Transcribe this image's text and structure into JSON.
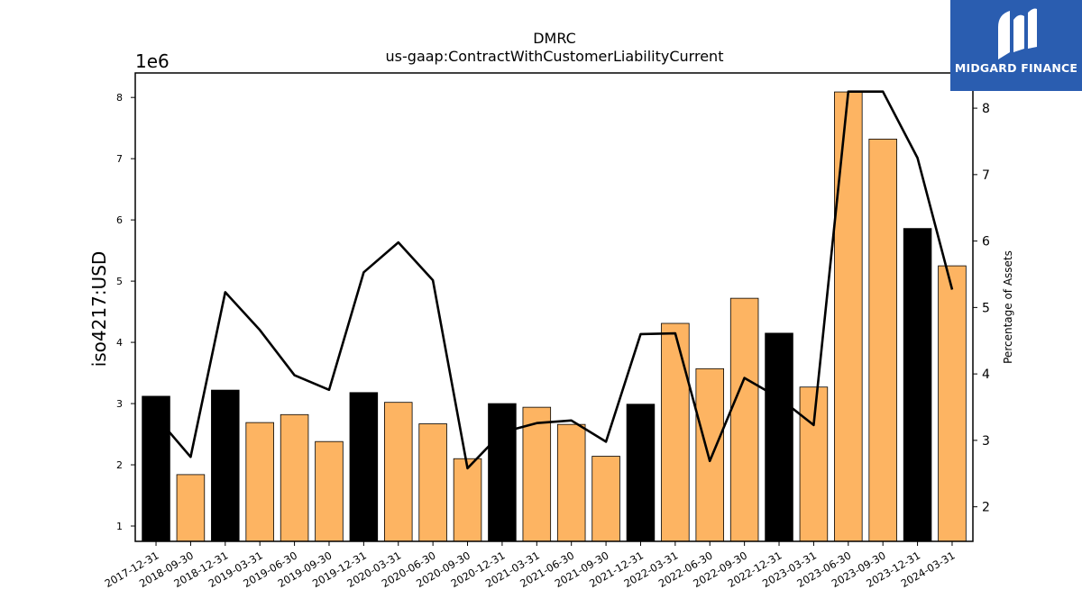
{
  "chart_data": {
    "type": "bar",
    "title": "DMRC",
    "subtitle": "us-gaap:ContractWithCustomerLiabilityCurrent",
    "ylabel": "iso4217:USD",
    "y2label": "Percentage of Assets",
    "y_multiplier": "1e6",
    "ylim": [
      0.75,
      8.4
    ],
    "y2lim": [
      1.48,
      8.53
    ],
    "yticks": [
      "1",
      "2",
      "3",
      "4",
      "5",
      "6",
      "7",
      "8"
    ],
    "y2ticks": [
      "2",
      "3",
      "4",
      "5",
      "6",
      "7",
      "8"
    ],
    "categories": [
      "2017-12-31",
      "2018-09-30",
      "2018-12-31",
      "2019-03-31",
      "2019-06-30",
      "2019-09-30",
      "2019-12-31",
      "2020-03-31",
      "2020-06-30",
      "2020-09-30",
      "2020-12-31",
      "2021-03-31",
      "2021-06-30",
      "2021-09-30",
      "2021-12-31",
      "2022-03-31",
      "2022-06-30",
      "2022-09-30",
      "2022-12-31",
      "2023-03-31",
      "2023-06-30",
      "2023-09-30",
      "2023-12-31",
      "2024-03-31"
    ],
    "series": [
      {
        "type": "bar",
        "values": [
          3.12,
          1.84,
          3.22,
          2.69,
          2.82,
          2.38,
          3.18,
          3.02,
          2.67,
          2.1,
          3.0,
          2.94,
          2.66,
          2.14,
          2.99,
          4.31,
          3.57,
          4.72,
          4.15,
          3.27,
          8.09,
          7.32,
          5.86,
          5.25
        ],
        "highlight": [
          true,
          false,
          true,
          false,
          false,
          false,
          true,
          false,
          false,
          false,
          true,
          false,
          false,
          false,
          true,
          false,
          false,
          false,
          true,
          false,
          false,
          false,
          true,
          false
        ]
      },
      {
        "type": "line",
        "axis": "right",
        "values": [
          3.36,
          2.75,
          5.23,
          4.66,
          3.98,
          3.76,
          5.53,
          5.98,
          5.41,
          2.58,
          3.12,
          3.26,
          3.3,
          2.98,
          4.6,
          4.61,
          2.69,
          3.94,
          3.64,
          3.23,
          8.25,
          8.25,
          7.25,
          5.27
        ]
      }
    ],
    "colors": {
      "bar": "#fdb462",
      "highlight_bar": "#000000",
      "line": "#000000",
      "bar_edge": "#000000"
    },
    "grid": false
  },
  "logo": {
    "text": "MIDGARD FINANCE",
    "background": "#2a5db0"
  }
}
